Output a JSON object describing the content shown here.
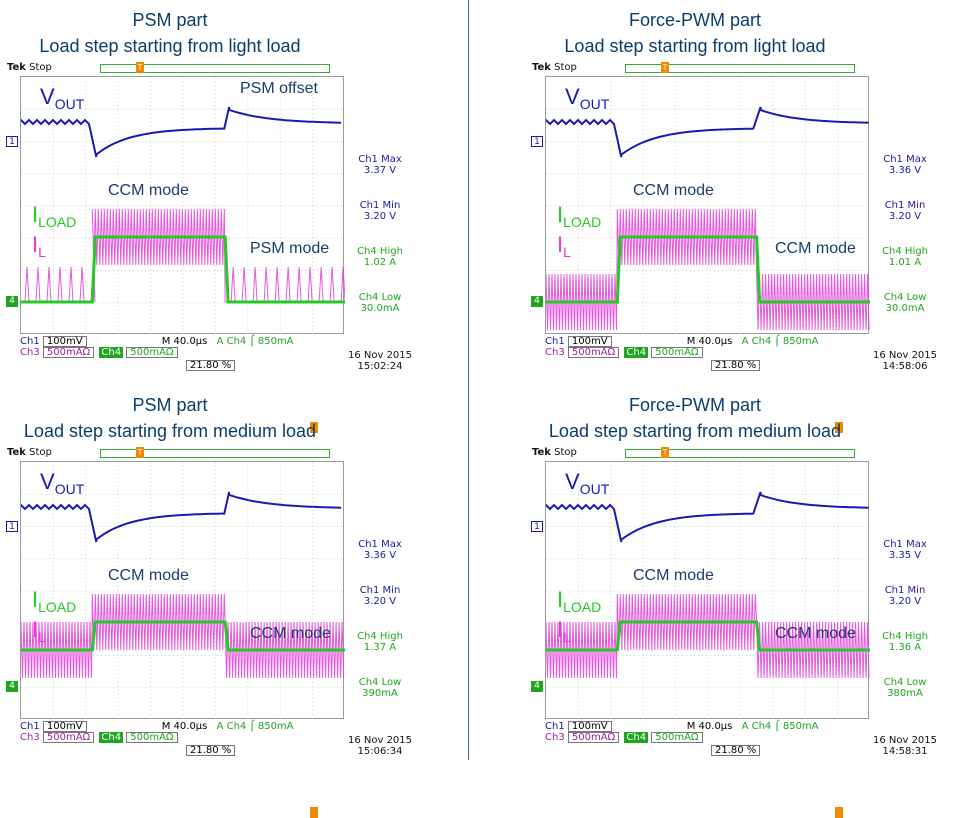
{
  "colors": {
    "vout": "#1a1ab0",
    "iload": "#25c925",
    "il": "#e33ad9",
    "title": "#0b3d6b",
    "divider": "#2f6f8f"
  },
  "panels": [
    {
      "title1": "PSM part",
      "title2": "Load step starting from light load",
      "scope_state": "Stop",
      "vout_label": "V",
      "vout_sub": "OUT",
      "iload_label": "I",
      "iload_sub": "LOAD",
      "il_label": "I",
      "il_sub": "L",
      "mode_top": "CCM mode",
      "mode_bottom": "PSM mode",
      "annotation": "PSM offset",
      "ch1_max_label": "Ch1 Max",
      "ch1_max_value": "3.37 V",
      "ch1_min_label": "Ch1 Min",
      "ch1_min_value": "3.20 V",
      "ch4_high_label": "Ch4 High",
      "ch4_high_value": "1.02 A",
      "ch4_low_label": "Ch4 Low",
      "ch4_low_value": "30.0mA",
      "ch1_scale": "100mV",
      "ch3_scale": "500mAΩ",
      "ch4_scale": "500mAΩ",
      "timebase": "M 40.0µs",
      "trigger": "A  Ch4  ⌠  850mA",
      "trigger_pos": "21.80 %",
      "date": "16 Nov 2015",
      "time": "15:02:24"
    },
    {
      "title1": "Force-PWM part",
      "title2": "Load step starting from light load",
      "scope_state": "Stop",
      "vout_label": "V",
      "vout_sub": "OUT",
      "iload_label": "I",
      "iload_sub": "LOAD",
      "il_label": "I",
      "il_sub": "L",
      "mode_top": "CCM mode",
      "mode_bottom": "CCM mode",
      "annotation": "",
      "ch1_max_label": "Ch1 Max",
      "ch1_max_value": "3.36 V",
      "ch1_min_label": "Ch1 Min",
      "ch1_min_value": "3.20 V",
      "ch4_high_label": "Ch4 High",
      "ch4_high_value": "1.01 A",
      "ch4_low_label": "Ch4 Low",
      "ch4_low_value": "30.0mA",
      "ch1_scale": "100mV",
      "ch3_scale": "500mAΩ",
      "ch4_scale": "500mAΩ",
      "timebase": "M 40.0µs",
      "trigger": "A  Ch4  ⌠  850mA",
      "trigger_pos": "21.80 %",
      "date": "16 Nov 2015",
      "time": "14:58:06"
    },
    {
      "title1": "PSM part",
      "title2": "Load step starting from medium load",
      "scope_state": "Stop",
      "vout_label": "V",
      "vout_sub": "OUT",
      "iload_label": "I",
      "iload_sub": "LOAD",
      "il_label": "I",
      "il_sub": "L",
      "mode_top": "CCM mode",
      "mode_bottom": "CCM mode",
      "annotation": "",
      "ch1_max_label": "Ch1 Max",
      "ch1_max_value": "3.36 V",
      "ch1_min_label": "Ch1 Min",
      "ch1_min_value": "3.20 V",
      "ch4_high_label": "Ch4 High",
      "ch4_high_value": "1.37 A",
      "ch4_low_label": "Ch4 Low",
      "ch4_low_value": "390mA",
      "ch1_scale": "100mV",
      "ch3_scale": "500mAΩ",
      "ch4_scale": "500mAΩ",
      "timebase": "M 40.0µs",
      "trigger": "A  Ch4  ⌠  850mA",
      "trigger_pos": "21.80 %",
      "date": "16 Nov 2015",
      "time": "15:06:34"
    },
    {
      "title1": "Force-PWM part",
      "title2": "Load step starting from medium load",
      "scope_state": "Stop",
      "vout_label": "V",
      "vout_sub": "OUT",
      "iload_label": "I",
      "iload_sub": "LOAD",
      "il_label": "I",
      "il_sub": "L",
      "mode_top": "CCM mode",
      "mode_bottom": "CCM mode",
      "annotation": "",
      "ch1_max_label": "Ch1 Max",
      "ch1_max_value": "3.35 V",
      "ch1_min_label": "Ch1 Min",
      "ch1_min_value": "3.20 V",
      "ch4_high_label": "Ch4 High",
      "ch4_high_value": "1.36 A",
      "ch4_low_label": "Ch4 Low",
      "ch4_low_value": "380mA",
      "ch1_scale": "100mV",
      "ch3_scale": "500mAΩ",
      "ch4_scale": "500mAΩ",
      "timebase": "M 40.0µs",
      "trigger": "A  Ch4  ⌠  850mA",
      "trigger_pos": "21.80 %",
      "date": "16 Nov 2015",
      "time": "14:58:31"
    }
  ],
  "chart_data": [
    {
      "type": "line",
      "title": "PSM part / Load step starting from light load",
      "x_unit": "µs (40.0µs/div)",
      "step_up_div": 2.2,
      "step_down_div": 6.3,
      "series": [
        {
          "name": "VOUT",
          "min": 3.2,
          "max": 3.37,
          "unit": "V"
        },
        {
          "name": "ILOAD",
          "low": 0.03,
          "high": 1.02,
          "unit": "A"
        },
        {
          "name": "IL",
          "low_mode": "PSM",
          "high_mode": "CCM"
        }
      ]
    },
    {
      "type": "line",
      "title": "Force-PWM part / Load step starting from light load",
      "x_unit": "µs (40.0µs/div)",
      "step_up_div": 2.2,
      "step_down_div": 6.5,
      "series": [
        {
          "name": "VOUT",
          "min": 3.2,
          "max": 3.36,
          "unit": "V"
        },
        {
          "name": "ILOAD",
          "low": 0.03,
          "high": 1.01,
          "unit": "A"
        },
        {
          "name": "IL",
          "low_mode": "CCM",
          "high_mode": "CCM"
        }
      ]
    },
    {
      "type": "line",
      "title": "PSM part / Load step starting from medium load",
      "x_unit": "µs (40.0µs/div)",
      "step_up_div": 2.2,
      "step_down_div": 6.3,
      "series": [
        {
          "name": "VOUT",
          "min": 3.2,
          "max": 3.36,
          "unit": "V"
        },
        {
          "name": "ILOAD",
          "low": 0.39,
          "high": 1.37,
          "unit": "A"
        },
        {
          "name": "IL",
          "low_mode": "CCM",
          "high_mode": "CCM"
        }
      ]
    },
    {
      "type": "line",
      "title": "Force-PWM part / Load step starting from medium load",
      "x_unit": "µs (40.0µs/div)",
      "step_up_div": 2.2,
      "step_down_div": 6.5,
      "series": [
        {
          "name": "VOUT",
          "min": 3.2,
          "max": 3.35,
          "unit": "V"
        },
        {
          "name": "ILOAD",
          "low": 0.38,
          "high": 1.36,
          "unit": "A"
        },
        {
          "name": "IL",
          "low_mode": "CCM",
          "high_mode": "CCM"
        }
      ]
    }
  ]
}
